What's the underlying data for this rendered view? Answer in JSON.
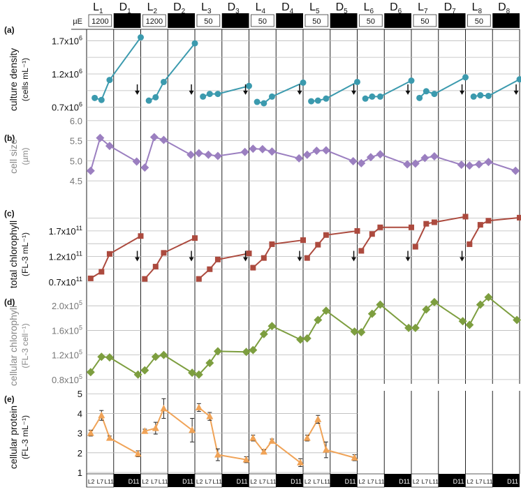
{
  "header": {
    "phases": [
      {
        "label": "L",
        "sub": "1",
        "type": "light",
        "intensity": "1200"
      },
      {
        "label": "D",
        "sub": "1",
        "type": "dark",
        "intensity": ""
      },
      {
        "label": "L",
        "sub": "2",
        "type": "light",
        "intensity": "1200"
      },
      {
        "label": "D",
        "sub": "2",
        "type": "dark",
        "intensity": ""
      },
      {
        "label": "L",
        "sub": "3",
        "type": "light",
        "intensity": "50"
      },
      {
        "label": "D",
        "sub": "3",
        "type": "dark",
        "intensity": ""
      },
      {
        "label": "L",
        "sub": "4",
        "type": "light",
        "intensity": "50"
      },
      {
        "label": "D",
        "sub": "4",
        "type": "dark",
        "intensity": ""
      },
      {
        "label": "L",
        "sub": "5",
        "type": "light",
        "intensity": "50"
      },
      {
        "label": "D",
        "sub": "5",
        "type": "dark",
        "intensity": ""
      },
      {
        "label": "L",
        "sub": "6",
        "type": "light",
        "intensity": "50"
      },
      {
        "label": "D",
        "sub": "6",
        "type": "dark",
        "intensity": ""
      },
      {
        "label": "L",
        "sub": "7",
        "type": "light",
        "intensity": "50"
      },
      {
        "label": "D",
        "sub": "7",
        "type": "dark",
        "intensity": ""
      },
      {
        "label": "L",
        "sub": "8",
        "type": "light",
        "intensity": "50"
      },
      {
        "label": "D",
        "sub": "8",
        "type": "dark",
        "intensity": ""
      }
    ],
    "intensity_unit": "µE"
  },
  "footer": {
    "light_sample_labels": [
      "L2",
      "L7",
      "L11"
    ],
    "dark_sample_label": "D11"
  },
  "colors": {
    "a": "#3b9aae",
    "b": "#9b7fc0",
    "c": "#ac4a3e",
    "d": "#7d9e3f",
    "e": "#f0a357",
    "dark": "#000000",
    "grid": "#b9b9b9"
  },
  "chart_data": [
    {
      "type": "line",
      "panel": "(a)",
      "ylabel": "culture density",
      "yunit": "(cells mL⁻¹)",
      "y_tick_labels": [
        {
          "v": 0.7,
          "base": "0.7x10",
          "exp": "6"
        },
        {
          "v": 1.2,
          "base": "1.2x10",
          "exp": "6"
        },
        {
          "v": 1.7,
          "base": "1.7x10",
          "exp": "6"
        }
      ],
      "ylim": [
        0.55,
        1.85
      ],
      "grid": [
        0.7,
        0.95,
        1.2,
        1.45,
        1.7
      ],
      "marker": "circle",
      "segments": [
        {
          "x": [
            0.3,
            0.55,
            0.85,
            2.0
          ],
          "y": [
            0.84,
            0.81,
            1.11,
            1.75
          ]
        },
        {
          "x": [
            2.3,
            2.55,
            2.85,
            4.0
          ],
          "y": [
            0.8,
            0.85,
            1.08,
            1.66
          ]
        },
        {
          "x": [
            4.3,
            4.55,
            4.85,
            6.0
          ],
          "y": [
            0.86,
            0.9,
            0.9,
            1.02
          ]
        },
        {
          "x": [
            6.3,
            6.55,
            6.85,
            8.0
          ],
          "y": [
            0.78,
            0.76,
            0.86,
            1.07
          ]
        },
        {
          "x": [
            8.3,
            8.55,
            8.85,
            10.0
          ],
          "y": [
            0.79,
            0.8,
            0.83,
            1.08
          ]
        },
        {
          "x": [
            10.3,
            10.55,
            10.85,
            12.0
          ],
          "y": [
            0.83,
            0.86,
            0.86,
            1.1
          ]
        },
        {
          "x": [
            12.3,
            12.55,
            12.85,
            14.0
          ],
          "y": [
            0.84,
            0.94,
            0.9,
            1.15
          ]
        },
        {
          "x": [
            14.3,
            14.55,
            14.85,
            16.0
          ],
          "y": [
            0.86,
            0.88,
            0.87,
            1.12
          ]
        }
      ],
      "arrows": [
        1.95,
        3.95,
        5.95,
        7.95,
        9.95,
        11.95,
        13.95,
        15.95
      ],
      "arrow_y": 0.96
    },
    {
      "type": "line",
      "panel": "(b)",
      "ylabel": "cell size",
      "yunit": "(µm)",
      "y_tick_labels": [
        {
          "v": 4.5,
          "base": "4.5"
        },
        {
          "v": 5.0,
          "base": "5.0"
        },
        {
          "v": 5.5,
          "base": "5.5"
        },
        {
          "v": 6.0,
          "base": "6.0"
        }
      ],
      "ylim": [
        4.45,
        6.05
      ],
      "grid": [
        4.5,
        5.0,
        5.5,
        6.0
      ],
      "marker": "diamond",
      "segments": [
        {
          "x": [
            0.15,
            0.5,
            0.85,
            1.85
          ],
          "y": [
            4.75,
            5.57,
            5.37,
            4.98
          ]
        },
        {
          "x": [
            2.15,
            2.5,
            2.85,
            3.85
          ],
          "y": [
            4.83,
            5.59,
            5.52,
            5.15
          ]
        },
        {
          "x": [
            4.15,
            4.5,
            4.85,
            5.85
          ],
          "y": [
            5.19,
            5.15,
            5.12,
            5.22
          ]
        },
        {
          "x": [
            6.15,
            6.5,
            6.85,
            7.85
          ],
          "y": [
            5.3,
            5.29,
            5.23,
            5.06
          ]
        },
        {
          "x": [
            8.15,
            8.5,
            8.85,
            9.85
          ],
          "y": [
            5.15,
            5.25,
            5.26,
            4.99
          ]
        },
        {
          "x": [
            10.15,
            10.5,
            10.85,
            11.85
          ],
          "y": [
            4.94,
            5.09,
            5.16,
            4.91
          ]
        },
        {
          "x": [
            12.15,
            12.5,
            12.85,
            13.85
          ],
          "y": [
            4.93,
            5.07,
            5.11,
            4.9
          ]
        },
        {
          "x": [
            14.15,
            14.5,
            14.85,
            15.85
          ],
          "y": [
            4.88,
            4.91,
            4.97,
            4.75
          ]
        }
      ]
    },
    {
      "type": "line",
      "panel": "(c)",
      "ylabel": "total chlorophyll",
      "yunit": "(FL-3 mL⁻¹)",
      "y_tick_labels": [
        {
          "v": 0.7,
          "base": "0.7x10",
          "exp": "11"
        },
        {
          "v": 1.2,
          "base": "1.2x10",
          "exp": "11"
        },
        {
          "v": 1.7,
          "base": "1.7x10",
          "exp": "11"
        }
      ],
      "ylim": [
        0.55,
        2.15
      ],
      "grid": [
        0.7,
        0.95,
        1.2,
        1.45,
        1.7,
        1.95
      ],
      "marker": "square",
      "segments": [
        {
          "x": [
            0.15,
            0.55,
            0.85,
            2.0
          ],
          "y": [
            0.77,
            0.9,
            1.25,
            1.6
          ]
        },
        {
          "x": [
            2.15,
            2.55,
            2.85,
            4.0
          ],
          "y": [
            0.76,
            1.0,
            1.27,
            1.56
          ]
        },
        {
          "x": [
            4.15,
            4.55,
            4.85,
            6.0
          ],
          "y": [
            0.76,
            0.95,
            1.14,
            1.26
          ]
        },
        {
          "x": [
            6.15,
            6.55,
            6.85,
            8.0
          ],
          "y": [
            0.98,
            1.17,
            1.44,
            1.52
          ]
        },
        {
          "x": [
            8.15,
            8.55,
            8.85,
            10.0
          ],
          "y": [
            1.17,
            1.43,
            1.62,
            1.7
          ]
        },
        {
          "x": [
            10.15,
            10.55,
            10.85,
            12.0
          ],
          "y": [
            1.31,
            1.64,
            1.77,
            1.77
          ]
        },
        {
          "x": [
            12.15,
            12.55,
            12.85,
            14.0
          ],
          "y": [
            1.39,
            1.84,
            1.87,
            1.98
          ]
        },
        {
          "x": [
            14.15,
            14.55,
            14.85,
            16.0
          ],
          "y": [
            1.44,
            1.82,
            1.9,
            1.96
          ]
        }
      ],
      "arrows": [
        1.95,
        3.95,
        5.95,
        7.95,
        9.95,
        11.95,
        13.95
      ],
      "arrow_y": 1.2
    },
    {
      "type": "line",
      "panel": "(d)",
      "ylabel": "cellular chlorophyll",
      "yunit": "(FL-3 cell⁻¹)",
      "y_tick_labels": [
        {
          "v": 0.8,
          "base": "0.8x10",
          "exp": "5"
        },
        {
          "v": 1.2,
          "base": "1.2x10",
          "exp": "5"
        },
        {
          "v": 1.6,
          "base": "1.6x10",
          "exp": "5"
        },
        {
          "v": 2.0,
          "base": "2.0x10",
          "exp": "5"
        }
      ],
      "ylim": [
        0.73,
        2.15
      ],
      "grid": [
        0.8,
        1.2,
        1.6,
        2.0
      ],
      "marker": "diamond",
      "segments": [
        {
          "x": [
            0.15,
            0.55,
            0.85,
            1.9
          ],
          "y": [
            0.92,
            1.17,
            1.16,
            0.88
          ]
        },
        {
          "x": [
            2.15,
            2.55,
            2.85,
            3.9
          ],
          "y": [
            0.95,
            1.17,
            1.2,
            0.91
          ]
        },
        {
          "x": [
            4.15,
            4.55,
            4.85,
            5.9
          ],
          "y": [
            0.88,
            1.07,
            1.26,
            1.25
          ]
        },
        {
          "x": [
            6.15,
            6.55,
            6.85,
            7.9
          ],
          "y": [
            1.28,
            1.54,
            1.67,
            1.45
          ]
        },
        {
          "x": [
            8.15,
            8.55,
            8.85,
            9.9
          ],
          "y": [
            1.47,
            1.77,
            1.92,
            1.58
          ]
        },
        {
          "x": [
            10.15,
            10.55,
            10.85,
            11.9
          ],
          "y": [
            1.57,
            1.87,
            2.02,
            1.64
          ]
        },
        {
          "x": [
            12.15,
            12.55,
            12.85,
            13.9
          ],
          "y": [
            1.64,
            1.94,
            2.06,
            1.75
          ]
        },
        {
          "x": [
            14.15,
            14.55,
            14.85,
            15.9
          ],
          "y": [
            1.69,
            2.02,
            2.14,
            1.77
          ]
        }
      ]
    },
    {
      "type": "line",
      "panel": "(e)",
      "ylabel": "cellular protein",
      "yunit": "(FL-3 mL⁻¹)",
      "y_tick_labels": [
        {
          "v": 1,
          "base": "1"
        },
        {
          "v": 2,
          "base": "2"
        },
        {
          "v": 3,
          "base": "3"
        },
        {
          "v": 4,
          "base": "4"
        },
        {
          "v": 5,
          "base": "5"
        }
      ],
      "ylim": [
        1.0,
        5.15
      ],
      "grid": [
        1,
        2,
        3,
        4,
        5
      ],
      "marker": "triangle",
      "x_extent": 10,
      "segments": [
        {
          "x": [
            0.15,
            0.55,
            0.85,
            1.9
          ],
          "y": [
            3.0,
            3.9,
            2.75,
            1.95
          ],
          "err": [
            0.15,
            0.25,
            0.1,
            0.15
          ]
        },
        {
          "x": [
            2.15,
            2.55,
            2.85,
            3.9
          ],
          "y": [
            3.1,
            3.25,
            4.25,
            3.15
          ],
          "err": [
            0.1,
            0.3,
            0.5,
            0.6
          ]
        },
        {
          "x": [
            4.15,
            4.55,
            4.85,
            5.9
          ],
          "y": [
            4.3,
            3.85,
            1.9,
            1.65
          ],
          "err": [
            0.2,
            0.2,
            0.3,
            0.15
          ]
        },
        {
          "x": [
            6.15,
            6.55,
            6.85,
            7.9
          ],
          "y": [
            2.75,
            2.05,
            2.6,
            1.5
          ],
          "err": [
            0.15,
            0.1,
            0.1,
            0.2
          ]
        },
        {
          "x": [
            8.15,
            8.55,
            8.85,
            9.9
          ],
          "y": [
            2.75,
            3.7,
            2.15,
            1.75
          ],
          "err": [
            0.15,
            0.2,
            0.4,
            0.15
          ]
        }
      ]
    }
  ]
}
